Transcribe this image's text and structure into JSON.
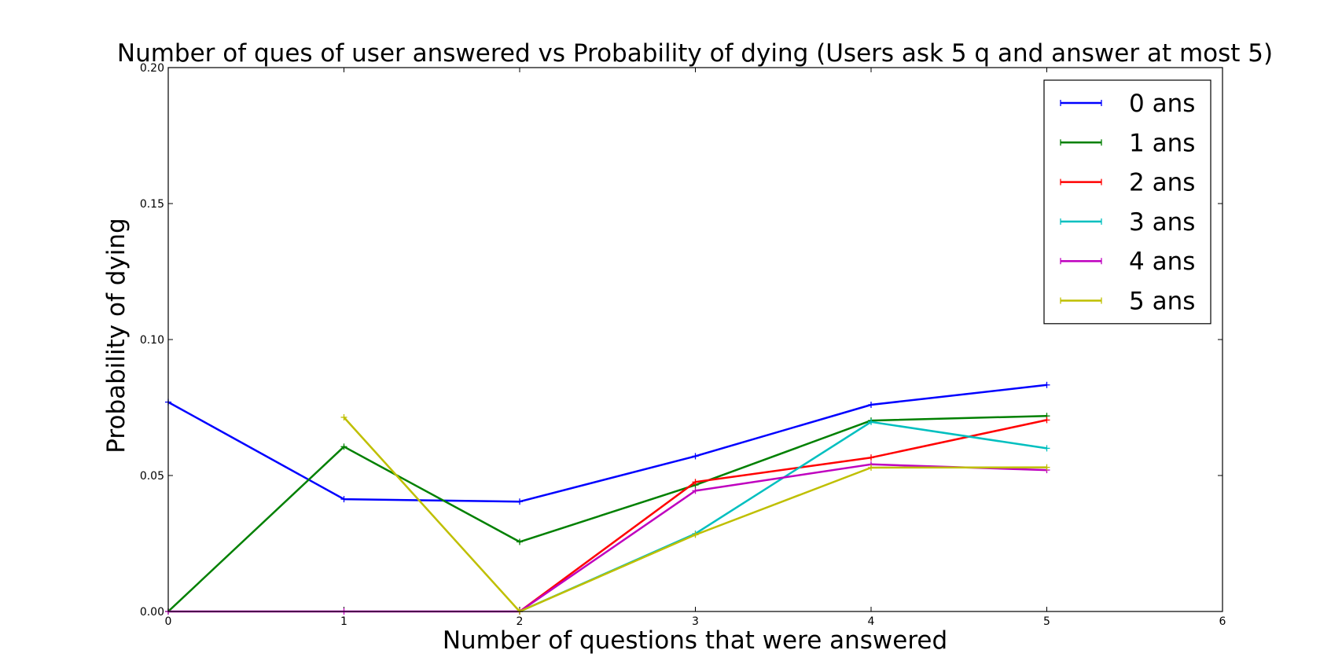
{
  "chart_data": {
    "type": "line",
    "title": "Number of ques of user answered vs Probability of dying (Users ask 5 q and answer at most 5)",
    "xlabel": "Number of questions that were answered",
    "ylabel": "Probability of dying",
    "xlim": [
      0,
      6
    ],
    "ylim": [
      0,
      0.2
    ],
    "xticks": [
      "0",
      "1",
      "2",
      "3",
      "4",
      "5",
      "6"
    ],
    "yticks": [
      "0.00",
      "0.05",
      "0.10",
      "0.15",
      "0.20"
    ],
    "grid": false,
    "legend_position": "top-right",
    "series": [
      {
        "name": "0 ans",
        "color": "#0000ff",
        "x": [
          0,
          1,
          2,
          3,
          4,
          5
        ],
        "y": [
          0.077,
          0.0413,
          0.0404,
          0.0571,
          0.076,
          0.0833
        ]
      },
      {
        "name": "1 ans",
        "color": "#008000",
        "x": [
          0,
          1,
          2,
          3,
          4,
          5
        ],
        "y": [
          0.0,
          0.0606,
          0.0256,
          0.0465,
          0.0702,
          0.0719
        ]
      },
      {
        "name": "2 ans",
        "color": "#ff0000",
        "x": [
          2,
          3,
          4,
          5
        ],
        "y": [
          0.0,
          0.0476,
          0.0566,
          0.0704
        ]
      },
      {
        "name": "3 ans",
        "color": "#00bfbf",
        "x": [
          2,
          3,
          4,
          5
        ],
        "y": [
          0.0,
          0.0286,
          0.0697,
          0.06
        ]
      },
      {
        "name": "4 ans",
        "color": "#bf00bf",
        "x": [
          0,
          1,
          2,
          3,
          4,
          5
        ],
        "y": [
          0.0,
          0.0,
          0.0,
          0.0444,
          0.0541,
          0.052
        ]
      },
      {
        "name": "5 ans",
        "color": "#bfbf00",
        "x": [
          1,
          2,
          3,
          4,
          5
        ],
        "y": [
          0.0714,
          0.0,
          0.0282,
          0.0529,
          0.053
        ]
      }
    ]
  }
}
